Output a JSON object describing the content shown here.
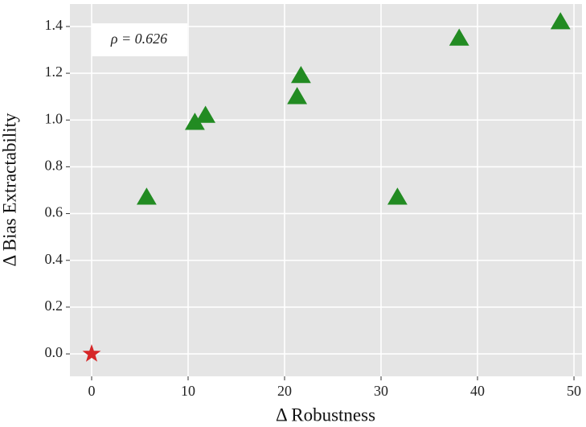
{
  "chart_data": {
    "type": "scatter",
    "x_label": "Δ Robustness",
    "y_label": "Δ Bias Extractability",
    "annotation": "ρ = 0.626",
    "xlim": [
      -2.25,
      50.83
    ],
    "ylim": [
      -0.096,
      1.496
    ],
    "xticks": [
      0,
      10,
      20,
      30,
      40,
      50
    ],
    "yticks": [
      {
        "value": 0,
        "label": "0.0"
      },
      {
        "value": 0.2,
        "label": "0.2"
      },
      {
        "value": 0.4,
        "label": "0.4"
      },
      {
        "value": 0.6,
        "label": "0.6"
      },
      {
        "value": 0.8,
        "label": "0.8"
      },
      {
        "value": 1.0,
        "label": "1.0"
      },
      {
        "value": 1.2,
        "label": "1.2"
      },
      {
        "value": 1.4,
        "label": "1.4"
      }
    ],
    "grid": true,
    "series": [
      {
        "marker": "star",
        "color": "#d62728",
        "x": [
          0
        ],
        "values": [
          0
        ]
      },
      {
        "marker": "triangle",
        "color": "#228b22",
        "x": [
          5.7,
          10.7,
          11.8,
          21.3,
          21.7,
          31.7,
          38.1,
          48.6
        ],
        "values": [
          0.67,
          0.99,
          1.02,
          1.1,
          1.19,
          0.67,
          1.35,
          1.42
        ]
      }
    ]
  }
}
